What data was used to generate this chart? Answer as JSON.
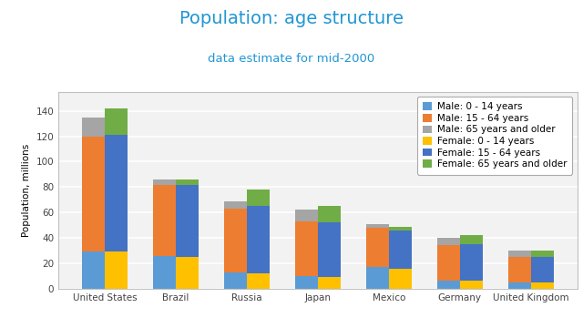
{
  "title": "Population: age structure",
  "subtitle": "data estimate for mid-2000",
  "ylabel": "Population, millions",
  "countries": [
    "United States",
    "Brazil",
    "Russia",
    "Japan",
    "Mexico",
    "Germany",
    "United Kingdom"
  ],
  "male_0_14": [
    29,
    26,
    13,
    10,
    17,
    6,
    5
  ],
  "male_15_64": [
    91,
    56,
    50,
    43,
    31,
    28,
    20
  ],
  "male_65plus": [
    15,
    4,
    6,
    9,
    3,
    6,
    5
  ],
  "female_0_14": [
    29,
    25,
    12,
    9,
    16,
    6,
    5
  ],
  "female_15_64": [
    92,
    57,
    53,
    43,
    30,
    29,
    20
  ],
  "female_65plus": [
    21,
    4,
    13,
    13,
    3,
    7,
    5
  ],
  "colors": {
    "male_0_14": "#5b9bd5",
    "male_15_64": "#ed7d31",
    "male_65plus": "#a5a5a5",
    "female_0_14": "#ffc000",
    "female_15_64": "#4472c4",
    "female_65plus": "#70ad47"
  },
  "ylim": [
    0,
    155
  ],
  "yticks": [
    0,
    20,
    40,
    60,
    80,
    100,
    120,
    140
  ],
  "bg_color": "#ffffff",
  "plot_bg": "#f2f2f2",
  "title_color": "#2196d3",
  "subtitle_color": "#2196d3",
  "grid_color": "#ffffff",
  "bar_width": 0.32,
  "legend_fontsize": 7.5,
  "title_fontsize": 14,
  "subtitle_fontsize": 9.5
}
